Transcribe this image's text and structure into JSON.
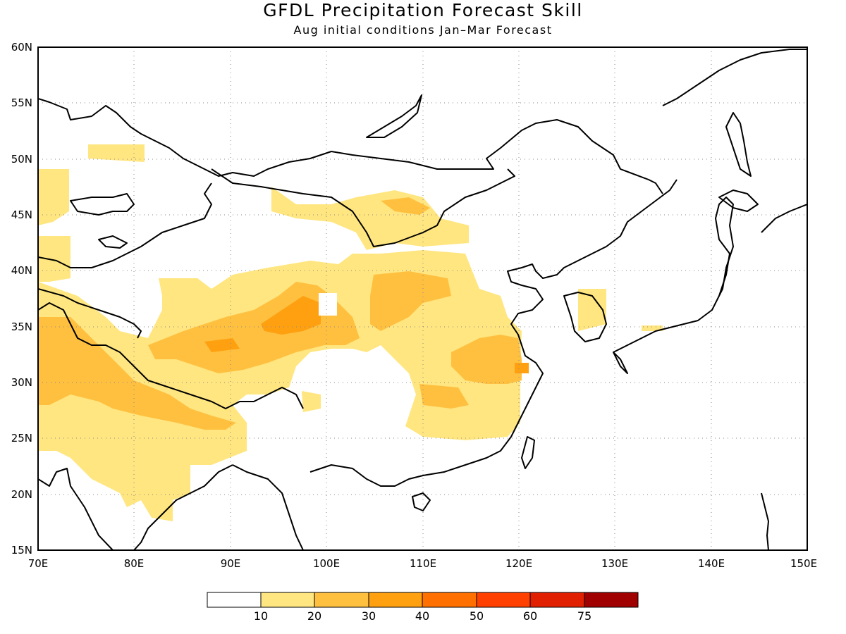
{
  "title": "GFDL Precipitation Forecast Skill",
  "subtitle": "Aug initial conditions  Jan–Mar Forecast",
  "map": {
    "lon_labels": [
      "70E",
      "80E",
      "90E",
      "100E",
      "110E",
      "120E",
      "130E",
      "140E",
      "150E"
    ],
    "lat_labels": [
      "60N",
      "55N",
      "50N",
      "45N",
      "40N",
      "35N",
      "30N",
      "25N",
      "20N",
      "15N"
    ],
    "lon_range": [
      70,
      150
    ],
    "lat_range": [
      15,
      60
    ],
    "gridlines": "dotted",
    "background": "#ffffff",
    "coastline_color": "#000000"
  },
  "colorbar": {
    "colors": [
      "#ffffff",
      "#ffe680",
      "#ffc040",
      "#ffa010",
      "#ff7000",
      "#ff4000",
      "#e02000",
      "#a00000"
    ],
    "labels": [
      "10",
      "20",
      "30",
      "40",
      "50",
      "60",
      "75"
    ]
  }
}
